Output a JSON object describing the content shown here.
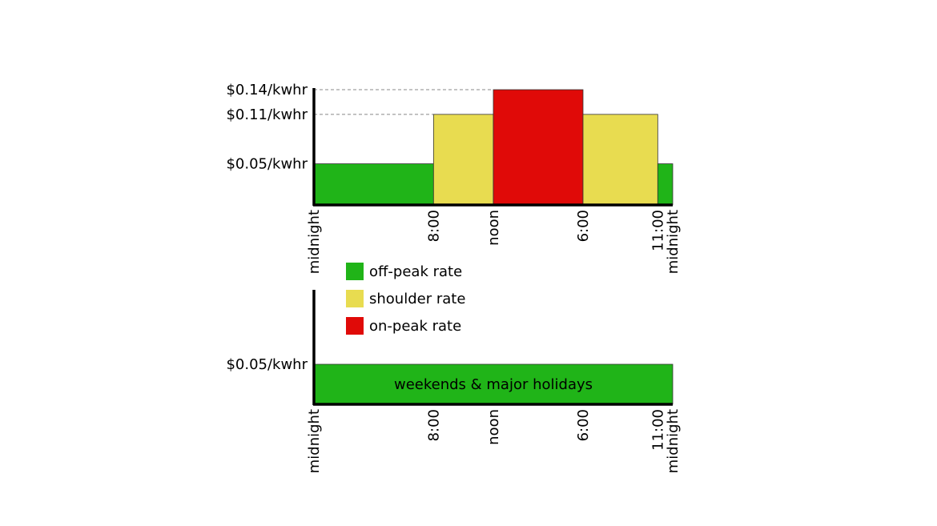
{
  "chart_data": [
    {
      "type": "bar",
      "subtitle": "",
      "x_unit": "hour",
      "xlim": [
        0,
        24
      ],
      "ylim": [
        0,
        0.14
      ],
      "segments": [
        {
          "start": 0,
          "end": 8,
          "rate": "off-peak",
          "value": 0.05
        },
        {
          "start": 8,
          "end": 12,
          "rate": "shoulder",
          "value": 0.11
        },
        {
          "start": 12,
          "end": 18,
          "rate": "on-peak",
          "value": 0.14
        },
        {
          "start": 18,
          "end": 23,
          "rate": "shoulder",
          "value": 0.11
        },
        {
          "start": 23,
          "end": 24,
          "rate": "off-peak",
          "value": 0.05
        }
      ],
      "y_tick_labels": [
        {
          "value": 0.14,
          "label": "$0.14/kwhr"
        },
        {
          "value": 0.11,
          "label": "$0.11/kwhr"
        },
        {
          "value": 0.05,
          "label": "$0.05/kwhr"
        }
      ],
      "x_tick_labels": [
        {
          "hour": 0,
          "label": "midnight"
        },
        {
          "hour": 8,
          "label": "8:00"
        },
        {
          "hour": 12,
          "label": "noon"
        },
        {
          "hour": 18,
          "label": "6:00"
        },
        {
          "hour": 23,
          "label": "11:00"
        },
        {
          "hour": 24,
          "label": "midnight"
        }
      ],
      "dashed_guides": true
    },
    {
      "type": "bar",
      "xlim": [
        0,
        24
      ],
      "segments": [
        {
          "start": 0,
          "end": 24,
          "rate": "off-peak",
          "value": 0.05,
          "label": "weekends & major holidays"
        }
      ],
      "y_tick_labels": [
        {
          "value": 0.05,
          "label": "$0.05/kwhr"
        }
      ],
      "x_tick_labels": [
        {
          "hour": 0,
          "label": "midnight"
        },
        {
          "hour": 8,
          "label": "8:00"
        },
        {
          "hour": 12,
          "label": "noon"
        },
        {
          "hour": 18,
          "label": "6:00"
        },
        {
          "hour": 23,
          "label": "11:00"
        },
        {
          "hour": 24,
          "label": "midnight"
        }
      ]
    }
  ],
  "legend": [
    {
      "rate": "off-peak",
      "label": "off-peak rate",
      "color": "#20b418"
    },
    {
      "rate": "shoulder",
      "label": "shoulder rate",
      "color": "#e8dc50"
    },
    {
      "rate": "on-peak",
      "label": "on-peak rate",
      "color": "#e00a08"
    }
  ],
  "colors": {
    "off-peak": "#20b418",
    "shoulder": "#e8dc50",
    "on-peak": "#e00a08",
    "axis": "#000000",
    "guide": "#888888"
  }
}
